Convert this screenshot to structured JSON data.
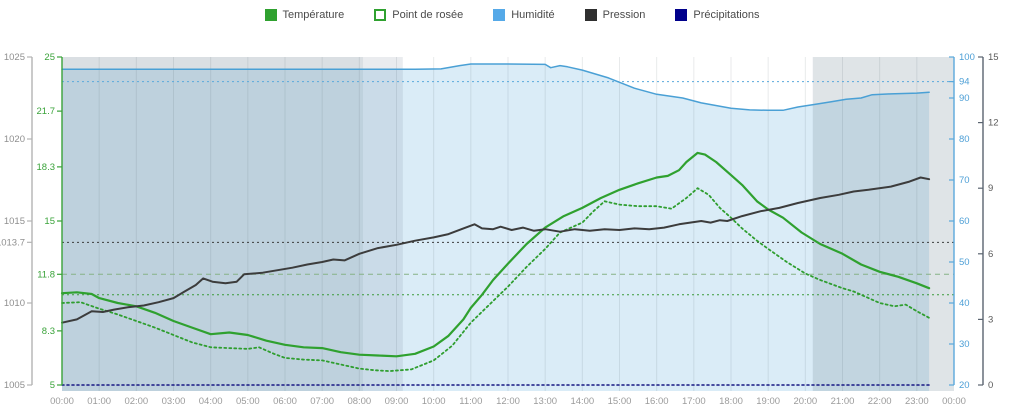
{
  "legend": {
    "items": [
      {
        "id": "temperature",
        "label": "Température",
        "color": "#2fa12f",
        "swatch": "solid"
      },
      {
        "id": "dew-point",
        "label": "Point de rosée",
        "color": "#2fa12f",
        "swatch": "dashed-outline"
      },
      {
        "id": "humidity",
        "label": "Humidité",
        "color": "#55a9e8",
        "swatch": "solid"
      },
      {
        "id": "pressure",
        "label": "Pression",
        "color": "#2f2f2f",
        "swatch": "solid"
      },
      {
        "id": "precipitation",
        "label": "Précipitations",
        "color": "#00008b",
        "swatch": "solid"
      }
    ]
  },
  "chart_data": {
    "type": "line",
    "title": "",
    "x_axis": {
      "range_hours": [
        0,
        24
      ],
      "ticks": [
        "00:00",
        "01:00",
        "02:00",
        "03:00",
        "04:00",
        "05:00",
        "06:00",
        "07:00",
        "08:00",
        "09:00",
        "10:00",
        "11:00",
        "12:00",
        "13:00",
        "14:00",
        "15:00",
        "16:00",
        "17:00",
        "18:00",
        "19:00",
        "20:00",
        "21:00",
        "22:00",
        "23:00",
        "00:00"
      ]
    },
    "y_axes": {
      "pressure": {
        "side": "outer-left",
        "range": [
          1005,
          1025
        ],
        "color": "#8f8f8f",
        "line_color": "#b3b3b3",
        "ticks": [
          [
            1025,
            "1025"
          ],
          [
            1020,
            "1020"
          ],
          [
            1015,
            "1015"
          ],
          [
            1013.7,
            "1013.7"
          ],
          [
            1010,
            "1010"
          ],
          [
            1005,
            "1005"
          ]
        ]
      },
      "temperature": {
        "side": "inner-left",
        "range": [
          5,
          25
        ],
        "color": "#3aa33a",
        "line_color": "#3aa33a",
        "ticks": [
          [
            25,
            "25"
          ],
          [
            21.7,
            "21.7"
          ],
          [
            18.3,
            "18.3"
          ],
          [
            15,
            "15"
          ],
          [
            11.75,
            "11.8"
          ],
          [
            8.3,
            "8.3"
          ],
          [
            5,
            "5"
          ]
        ]
      },
      "humidity": {
        "side": "inner-right",
        "range": [
          20,
          100
        ],
        "color": "#4d9fd6",
        "line_color": "#5aa9dc",
        "ticks": [
          [
            100,
            "100"
          ],
          [
            94,
            "94"
          ],
          [
            90,
            "90"
          ],
          [
            80,
            "80"
          ],
          [
            70,
            "70"
          ],
          [
            60,
            "60"
          ],
          [
            50,
            "50"
          ],
          [
            40,
            "40"
          ],
          [
            30,
            "30"
          ],
          [
            20,
            "20"
          ]
        ]
      },
      "precipitation": {
        "side": "outer-right",
        "range": [
          0,
          15
        ],
        "color": "#5a5a5a",
        "line_color": "#5a6470",
        "ticks": [
          [
            15,
            "15"
          ],
          [
            12,
            "12"
          ],
          [
            9,
            "9"
          ],
          [
            6,
            "6"
          ],
          [
            3,
            "3"
          ],
          [
            0,
            "0"
          ]
        ]
      }
    },
    "reference_lines": [
      {
        "axis": "humidity",
        "value": 94,
        "style": "dotted",
        "color": "#5aa9dc"
      },
      {
        "axis": "pressure",
        "value": 1013.7,
        "style": "dotted",
        "color": "#3d3d3d"
      },
      {
        "axis": "temperature",
        "value": 11.75,
        "style": "dashed",
        "color": "#86b286"
      },
      {
        "axis": "temperature",
        "value": 10.5,
        "style": "dotted",
        "color": "#3a9a3a"
      }
    ],
    "night_bands": [
      {
        "from": 0,
        "to": 8.1,
        "opacity": 0.26
      },
      {
        "from": 8.1,
        "to": 9.17,
        "opacity": 0.15
      },
      {
        "from": 20.2,
        "to": 24,
        "opacity": 0.22
      }
    ],
    "data_end_hour": 23.33,
    "series": [
      {
        "name": "Température",
        "axis": "temperature",
        "color": "#2fa12f",
        "style": "solid",
        "width": 2.2,
        "points": [
          [
            0,
            10.6
          ],
          [
            0.4,
            10.65
          ],
          [
            0.8,
            10.55
          ],
          [
            1,
            10.3
          ],
          [
            1.5,
            10.0
          ],
          [
            2,
            9.8
          ],
          [
            2.5,
            9.4
          ],
          [
            3,
            8.9
          ],
          [
            3.5,
            8.5
          ],
          [
            4,
            8.1
          ],
          [
            4.5,
            8.2
          ],
          [
            5,
            8.05
          ],
          [
            5.5,
            7.7
          ],
          [
            6,
            7.45
          ],
          [
            6.5,
            7.3
          ],
          [
            7,
            7.25
          ],
          [
            7.5,
            7.0
          ],
          [
            8,
            6.85
          ],
          [
            8.5,
            6.8
          ],
          [
            9,
            6.75
          ],
          [
            9.5,
            6.9
          ],
          [
            10,
            7.35
          ],
          [
            10.4,
            8.0
          ],
          [
            10.8,
            9.0
          ],
          [
            11,
            9.7
          ],
          [
            11.3,
            10.5
          ],
          [
            11.6,
            11.4
          ],
          [
            12,
            12.4
          ],
          [
            12.5,
            13.6
          ],
          [
            13,
            14.6
          ],
          [
            13.5,
            15.3
          ],
          [
            14,
            15.8
          ],
          [
            14.5,
            16.4
          ],
          [
            15,
            16.9
          ],
          [
            15.5,
            17.3
          ],
          [
            16,
            17.65
          ],
          [
            16.3,
            17.75
          ],
          [
            16.6,
            18.1
          ],
          [
            16.8,
            18.6
          ],
          [
            17.1,
            19.15
          ],
          [
            17.3,
            19.05
          ],
          [
            17.6,
            18.6
          ],
          [
            18,
            17.8
          ],
          [
            18.3,
            17.2
          ],
          [
            18.7,
            16.2
          ],
          [
            19,
            15.7
          ],
          [
            19.4,
            15.2
          ],
          [
            19.9,
            14.3
          ],
          [
            20.4,
            13.6
          ],
          [
            21,
            13.0
          ],
          [
            21.5,
            12.35
          ],
          [
            22,
            11.9
          ],
          [
            22.5,
            11.6
          ],
          [
            23,
            11.2
          ],
          [
            23.33,
            10.9
          ]
        ]
      },
      {
        "name": "Point de rosée",
        "axis": "temperature",
        "color": "#2f9e2f",
        "style": "dotted",
        "width": 1.8,
        "points": [
          [
            0,
            10.0
          ],
          [
            0.5,
            10.05
          ],
          [
            1,
            9.65
          ],
          [
            1.5,
            9.3
          ],
          [
            2,
            8.9
          ],
          [
            2.5,
            8.5
          ],
          [
            3,
            8.05
          ],
          [
            3.5,
            7.6
          ],
          [
            4,
            7.3
          ],
          [
            4.5,
            7.25
          ],
          [
            5,
            7.2
          ],
          [
            5.3,
            7.3
          ],
          [
            5.7,
            6.9
          ],
          [
            6,
            6.65
          ],
          [
            6.5,
            6.55
          ],
          [
            7,
            6.5
          ],
          [
            7.5,
            6.25
          ],
          [
            8,
            6.0
          ],
          [
            8.4,
            5.9
          ],
          [
            8.8,
            5.85
          ],
          [
            9.4,
            5.95
          ],
          [
            10,
            6.5
          ],
          [
            10.5,
            7.4
          ],
          [
            11,
            8.8
          ],
          [
            11.5,
            9.9
          ],
          [
            12,
            11.0
          ],
          [
            12.5,
            12.2
          ],
          [
            13,
            13.3
          ],
          [
            13.4,
            14.3
          ],
          [
            14,
            14.9
          ],
          [
            14.3,
            15.6
          ],
          [
            14.6,
            16.2
          ],
          [
            15,
            16.0
          ],
          [
            15.5,
            15.9
          ],
          [
            16,
            15.9
          ],
          [
            16.4,
            15.75
          ],
          [
            16.8,
            16.4
          ],
          [
            17.1,
            17.0
          ],
          [
            17.4,
            16.6
          ],
          [
            17.7,
            15.8
          ],
          [
            18,
            15.2
          ],
          [
            18.3,
            14.55
          ],
          [
            18.7,
            13.8
          ],
          [
            19,
            13.3
          ],
          [
            19.5,
            12.5
          ],
          [
            20,
            11.8
          ],
          [
            20.4,
            11.4
          ],
          [
            21,
            10.9
          ],
          [
            21.3,
            10.7
          ],
          [
            22,
            10.0
          ],
          [
            22.4,
            9.8
          ],
          [
            22.7,
            9.9
          ],
          [
            23,
            9.5
          ],
          [
            23.33,
            9.1
          ]
        ]
      },
      {
        "name": "Humidité",
        "axis": "humidity",
        "color": "#4aa0d5",
        "style": "solid",
        "width": 1.5,
        "fill": "rgba(88,168,220,0.22)",
        "points": [
          [
            0,
            97
          ],
          [
            2,
            97
          ],
          [
            4,
            97
          ],
          [
            6,
            97
          ],
          [
            8,
            97
          ],
          [
            9.5,
            97
          ],
          [
            10.2,
            97.1
          ],
          [
            10.7,
            97.9
          ],
          [
            11,
            98.3
          ],
          [
            12,
            98.3
          ],
          [
            13,
            98.2
          ],
          [
            13.15,
            97.4
          ],
          [
            13.4,
            97.9
          ],
          [
            13.6,
            97.6
          ],
          [
            14,
            96.8
          ],
          [
            14.7,
            94.9
          ],
          [
            15.4,
            92.4
          ],
          [
            16,
            90.9
          ],
          [
            16.7,
            90.0
          ],
          [
            17.2,
            88.8
          ],
          [
            18,
            87.5
          ],
          [
            18.5,
            87.1
          ],
          [
            19,
            87.0
          ],
          [
            19.4,
            87.0
          ],
          [
            19.8,
            87.8
          ],
          [
            20.3,
            88.5
          ],
          [
            20.7,
            89.1
          ],
          [
            21.1,
            89.7
          ],
          [
            21.5,
            90.0
          ],
          [
            21.8,
            90.8
          ],
          [
            22.3,
            91.0
          ],
          [
            23,
            91.2
          ],
          [
            23.33,
            91.4
          ]
        ]
      },
      {
        "name": "Pression",
        "axis": "pressure",
        "color": "#3c3c3c",
        "style": "solid",
        "width": 2,
        "points": [
          [
            0,
            1008.8
          ],
          [
            0.4,
            1009.0
          ],
          [
            0.8,
            1009.5
          ],
          [
            1.1,
            1009.45
          ],
          [
            1.4,
            1009.6
          ],
          [
            1.8,
            1009.75
          ],
          [
            2.2,
            1009.85
          ],
          [
            2.6,
            1010.05
          ],
          [
            3,
            1010.3
          ],
          [
            3.3,
            1010.7
          ],
          [
            3.6,
            1011.1
          ],
          [
            3.8,
            1011.5
          ],
          [
            4.05,
            1011.3
          ],
          [
            4.4,
            1011.2
          ],
          [
            4.7,
            1011.3
          ],
          [
            4.9,
            1011.75
          ],
          [
            5.4,
            1011.85
          ],
          [
            5.8,
            1012.0
          ],
          [
            6.2,
            1012.15
          ],
          [
            6.6,
            1012.35
          ],
          [
            7,
            1012.5
          ],
          [
            7.3,
            1012.65
          ],
          [
            7.6,
            1012.6
          ],
          [
            8,
            1013.0
          ],
          [
            8.5,
            1013.35
          ],
          [
            9,
            1013.55
          ],
          [
            9.5,
            1013.8
          ],
          [
            10,
            1014.0
          ],
          [
            10.4,
            1014.2
          ],
          [
            10.8,
            1014.55
          ],
          [
            11.1,
            1014.8
          ],
          [
            11.3,
            1014.55
          ],
          [
            11.6,
            1014.5
          ],
          [
            11.8,
            1014.65
          ],
          [
            12.1,
            1014.45
          ],
          [
            12.4,
            1014.6
          ],
          [
            12.7,
            1014.4
          ],
          [
            13,
            1014.5
          ],
          [
            13.4,
            1014.35
          ],
          [
            13.8,
            1014.5
          ],
          [
            14.2,
            1014.4
          ],
          [
            14.6,
            1014.5
          ],
          [
            15,
            1014.45
          ],
          [
            15.4,
            1014.55
          ],
          [
            15.8,
            1014.5
          ],
          [
            16.2,
            1014.6
          ],
          [
            16.6,
            1014.8
          ],
          [
            16.9,
            1014.9
          ],
          [
            17.2,
            1015.0
          ],
          [
            17.45,
            1014.9
          ],
          [
            17.7,
            1015.05
          ],
          [
            17.9,
            1015.0
          ],
          [
            18.3,
            1015.3
          ],
          [
            18.8,
            1015.6
          ],
          [
            19.3,
            1015.8
          ],
          [
            19.8,
            1016.1
          ],
          [
            20.4,
            1016.4
          ],
          [
            20.9,
            1016.6
          ],
          [
            21.3,
            1016.8
          ],
          [
            21.7,
            1016.9
          ],
          [
            22.3,
            1017.1
          ],
          [
            22.8,
            1017.4
          ],
          [
            23.1,
            1017.65
          ],
          [
            23.33,
            1017.55
          ]
        ]
      },
      {
        "name": "Précipitations",
        "axis": "precipitation",
        "color": "#181884",
        "style": "dotted",
        "width": 1.6,
        "points": [
          [
            0,
            0
          ],
          [
            23.33,
            0
          ]
        ]
      }
    ]
  }
}
